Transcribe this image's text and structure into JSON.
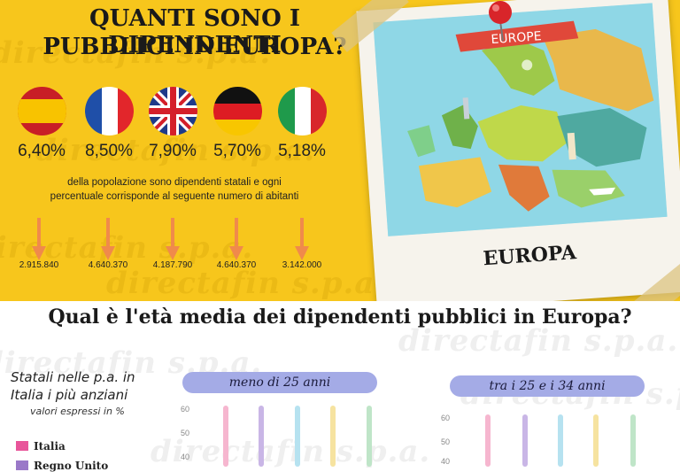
{
  "header": {
    "title_line1": "QUANTI SONO I DIPENDENTI",
    "title_line2": "PUBBLICI IN EUROPA?"
  },
  "watermark": "directafin s.p.a.",
  "flags": [
    {
      "country": "spain",
      "percent": "6,40%",
      "inhabitants": "2.915.840"
    },
    {
      "country": "france",
      "percent": "8,50%",
      "inhabitants": "4.640.370"
    },
    {
      "country": "uk",
      "percent": "7,90%",
      "inhabitants": "4.187.790"
    },
    {
      "country": "germany",
      "percent": "5,70%",
      "inhabitants": "4.640.370"
    },
    {
      "country": "italy",
      "percent": "5,18%",
      "inhabitants": "3.142.000"
    }
  ],
  "description_line1": "della popolazione sono dipendenti statali e ogni",
  "description_line2": "percentuale corrisponde al seguente numero di abitanti",
  "map": {
    "banner": "EUROPE",
    "caption": "EUROPA"
  },
  "section2": {
    "question": "Qual è l'età media dei dipendenti pubblici in Europa?",
    "subtitle_line1": "Statali nelle p.a. in",
    "subtitle_line2": "Italia i più anziani",
    "subtitle_line3": "valori espressi in %",
    "legend": [
      {
        "label": "Italia",
        "color": "#e8559a"
      },
      {
        "label": "Regno Unito",
        "color": "#9a78c8"
      }
    ]
  },
  "chart_data": [
    {
      "type": "bar",
      "title": "meno di 25 anni",
      "yticks": [
        "60",
        "50",
        "40"
      ],
      "series_colors": [
        "#f6b6cf",
        "#c9b6e6",
        "#b6e2f0",
        "#f6e3a0",
        "#bfe5c8"
      ]
    },
    {
      "type": "bar",
      "title": "tra i 25 e i 34 anni",
      "yticks": [
        "60",
        "50",
        "40"
      ],
      "series_colors": [
        "#f6b6cf",
        "#c9b6e6",
        "#b6e2f0",
        "#f6e3a0",
        "#bfe5c8"
      ]
    }
  ],
  "colors": {
    "background_top": "#f7c61c",
    "accent_purple": "#a4abe6"
  }
}
